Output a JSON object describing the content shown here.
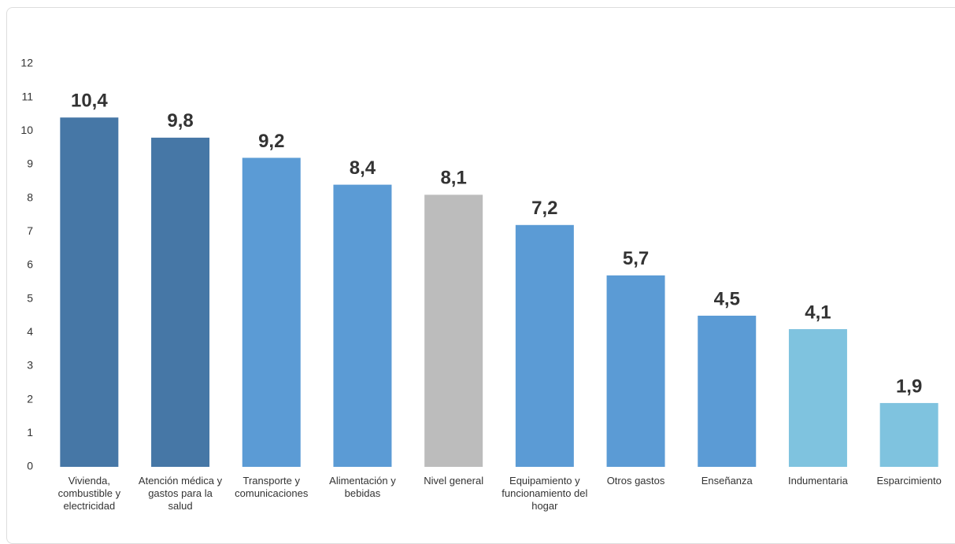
{
  "chart_data": {
    "type": "bar",
    "categories": [
      "Vivienda, combustible y electricidad",
      "Atención médica y gastos para la salud",
      "Transporte y comunicaciones",
      "Alimentación y bebidas",
      "Nivel general",
      "Equipamiento y funcionamiento del hogar",
      "Otros gastos",
      "Enseñanza",
      "Indumentaria",
      "Esparcimiento"
    ],
    "values": [
      10.4,
      9.8,
      9.2,
      8.4,
      8.1,
      7.2,
      5.7,
      4.5,
      4.1,
      1.9
    ],
    "value_labels": [
      "10,4",
      "9,8",
      "9,2",
      "8,4",
      "8,1",
      "7,2",
      "5,7",
      "4,5",
      "4,1",
      "1,9"
    ],
    "colors": [
      "#4677a6",
      "#4677a6",
      "#5b9bd5",
      "#5b9bd5",
      "#bcbcbc",
      "#5b9bd5",
      "#5b9bd5",
      "#5b9bd5",
      "#7fc3df",
      "#7fc3df"
    ],
    "ylim": [
      0,
      12
    ],
    "yticks": [
      0,
      1,
      2,
      3,
      4,
      5,
      6,
      7,
      8,
      9,
      10,
      11,
      12
    ],
    "grid": false
  }
}
